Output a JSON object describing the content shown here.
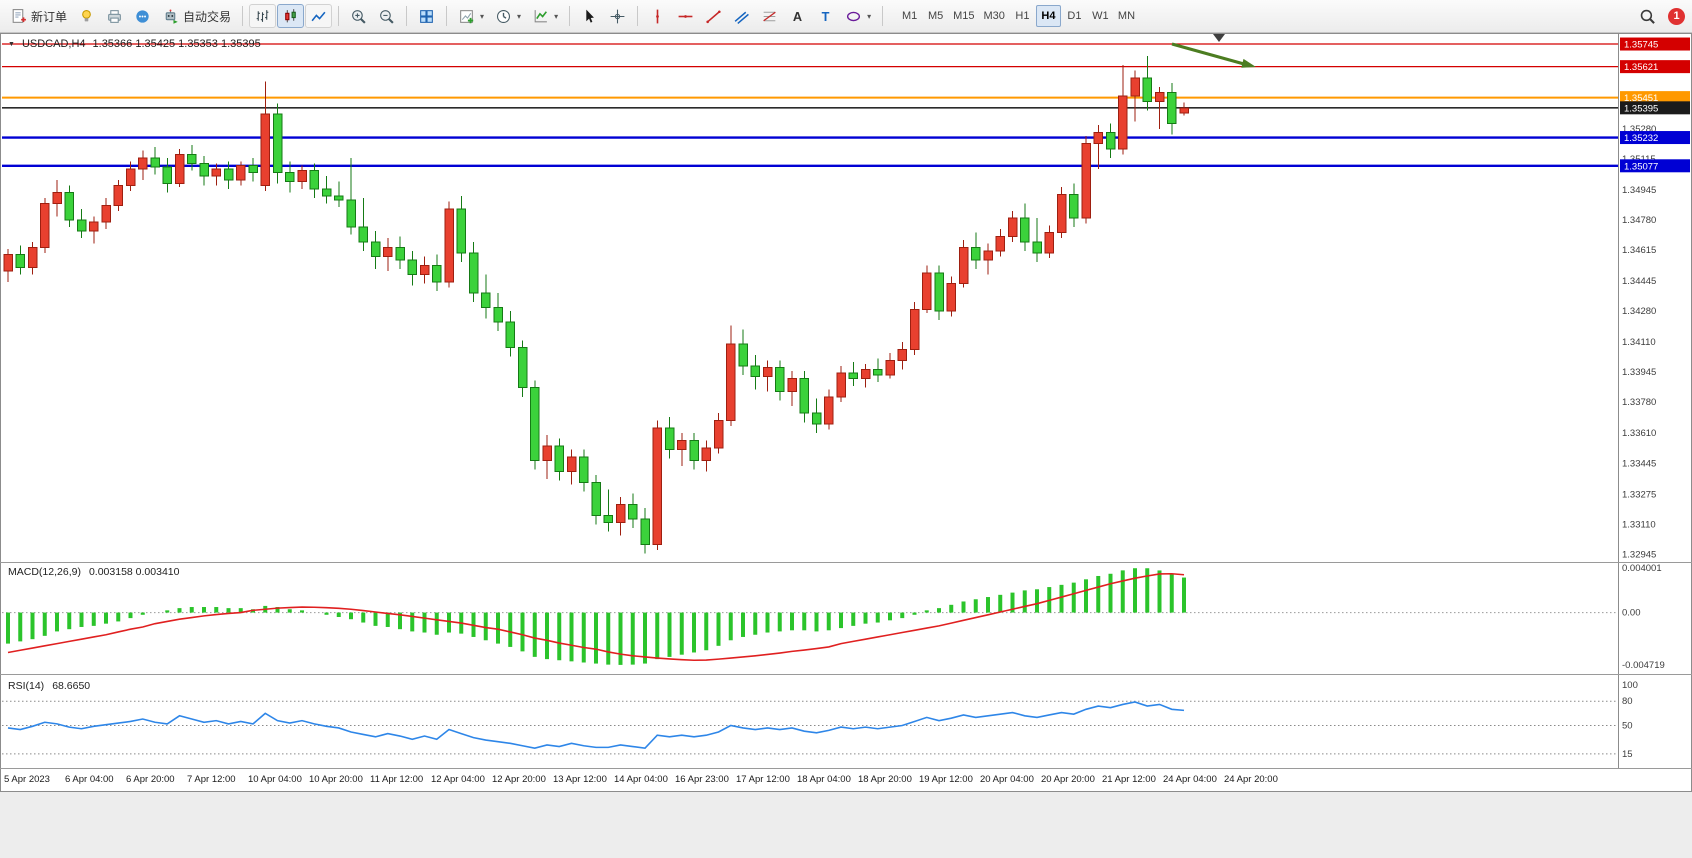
{
  "toolbar": {
    "new_order_label": "新订单",
    "algo_trading_label": "自动交易",
    "timeframes": [
      "M1",
      "M5",
      "M15",
      "M30",
      "H1",
      "H4",
      "D1",
      "W1",
      "MN"
    ],
    "active_timeframe": "H4",
    "notification_count": "1"
  },
  "chart": {
    "symbol_period": "USDCAD,H4",
    "ohlc": "1.35366 1.35425 1.35353 1.35395"
  },
  "chart_data": {
    "type": "candlestick",
    "symbol": "USDCAD",
    "period": "H4",
    "ylim": [
      1.3292,
      1.358
    ],
    "colors": {
      "bull": "#e8402f",
      "bull_border": "#9e1f10",
      "bear": "#3bd23b",
      "bear_border": "#157a15",
      "macd_histogram": "#2bc42b",
      "macd_signal": "#e02020",
      "rsi_line": "#2e86e8",
      "level_red": "#d40000",
      "level_orange": "#ff9900",
      "level_blue": "#0000d4",
      "bid_line": "#2b2b2b",
      "annotation_arrow": "#4c7d21"
    },
    "price_axis_labels": [
      1.3528,
      1.35115,
      1.34945,
      1.3478,
      1.34615,
      1.34445,
      1.3428,
      1.3411,
      1.33945,
      1.3378,
      1.3361,
      1.33445,
      1.33275,
      1.3311,
      1.32945
    ],
    "time_labels": [
      "5 Apr 2023",
      "6 Apr 04:00",
      "6 Apr 20:00",
      "7 Apr 12:00",
      "10 Apr 04:00",
      "10 Apr 20:00",
      "11 Apr 12:00",
      "12 Apr 04:00",
      "12 Apr 20:00",
      "13 Apr 12:00",
      "14 Apr 04:00",
      "16 Apr 23:00",
      "17 Apr 12:00",
      "18 Apr 04:00",
      "18 Apr 20:00",
      "19 Apr 12:00",
      "20 Apr 04:00",
      "20 Apr 20:00",
      "21 Apr 12:00",
      "24 Apr 04:00",
      "24 Apr 20:00"
    ],
    "levels": [
      {
        "price": 1.35745,
        "color": "#d40000",
        "width": 1.2
      },
      {
        "price": 1.35621,
        "color": "#d40000",
        "width": 1.2
      },
      {
        "price": 1.35451,
        "color": "#ff9900",
        "width": 2
      },
      {
        "price": 1.35232,
        "color": "#0000d4",
        "width": 2.4
      },
      {
        "price": 1.35077,
        "color": "#0000d4",
        "width": 2.4
      }
    ],
    "bid": {
      "price": 1.35395,
      "color": "#2b2b2b"
    },
    "candles": [
      [
        1.345,
        1.3462,
        1.3444,
        1.3459
      ],
      [
        1.3459,
        1.3464,
        1.3448,
        1.3452
      ],
      [
        1.3452,
        1.3466,
        1.3448,
        1.3463
      ],
      [
        1.3463,
        1.349,
        1.346,
        1.3487
      ],
      [
        1.3487,
        1.35,
        1.348,
        1.3493
      ],
      [
        1.3493,
        1.3497,
        1.3474,
        1.3478
      ],
      [
        1.3478,
        1.3484,
        1.3468,
        1.3472
      ],
      [
        1.3472,
        1.348,
        1.3465,
        1.3477
      ],
      [
        1.3477,
        1.349,
        1.3473,
        1.3486
      ],
      [
        1.3486,
        1.35,
        1.3483,
        1.3497
      ],
      [
        1.3497,
        1.351,
        1.3494,
        1.3506
      ],
      [
        1.3506,
        1.3516,
        1.35,
        1.3512
      ],
      [
        1.3512,
        1.3518,
        1.3503,
        1.3507
      ],
      [
        1.3507,
        1.3512,
        1.3493,
        1.3498
      ],
      [
        1.3498,
        1.3517,
        1.3496,
        1.3514
      ],
      [
        1.3514,
        1.3519,
        1.3505,
        1.3509
      ],
      [
        1.3509,
        1.3513,
        1.3497,
        1.3502
      ],
      [
        1.3502,
        1.3509,
        1.3497,
        1.3506
      ],
      [
        1.3506,
        1.351,
        1.3495,
        1.35
      ],
      [
        1.35,
        1.351,
        1.3497,
        1.3508
      ],
      [
        1.3508,
        1.3512,
        1.3499,
        1.3504
      ],
      [
        1.3497,
        1.3554,
        1.3494,
        1.3536
      ],
      [
        1.3536,
        1.3542,
        1.3498,
        1.3504
      ],
      [
        1.3504,
        1.351,
        1.3493,
        1.3499
      ],
      [
        1.3499,
        1.3508,
        1.3495,
        1.3505
      ],
      [
        1.3505,
        1.3509,
        1.349,
        1.3495
      ],
      [
        1.3495,
        1.3502,
        1.3487,
        1.3491
      ],
      [
        1.3491,
        1.3499,
        1.3485,
        1.3489
      ],
      [
        1.3489,
        1.3512,
        1.347,
        1.3474
      ],
      [
        1.3474,
        1.349,
        1.3461,
        1.3466
      ],
      [
        1.3466,
        1.3472,
        1.3451,
        1.3458
      ],
      [
        1.3458,
        1.3468,
        1.345,
        1.3463
      ],
      [
        1.3463,
        1.3469,
        1.3451,
        1.3456
      ],
      [
        1.3456,
        1.3461,
        1.3442,
        1.3448
      ],
      [
        1.3448,
        1.3458,
        1.3443,
        1.3453
      ],
      [
        1.3453,
        1.3459,
        1.3439,
        1.3444
      ],
      [
        1.3444,
        1.3488,
        1.3441,
        1.3484
      ],
      [
        1.3484,
        1.3491,
        1.3455,
        1.346
      ],
      [
        1.346,
        1.3466,
        1.3433,
        1.3438
      ],
      [
        1.3438,
        1.3448,
        1.3424,
        1.343
      ],
      [
        1.343,
        1.3438,
        1.3417,
        1.3422
      ],
      [
        1.3422,
        1.3428,
        1.3403,
        1.3408
      ],
      [
        1.3408,
        1.3412,
        1.3381,
        1.3386
      ],
      [
        1.3386,
        1.339,
        1.3341,
        1.3346
      ],
      [
        1.3346,
        1.336,
        1.3336,
        1.3354
      ],
      [
        1.3354,
        1.3358,
        1.3335,
        1.334
      ],
      [
        1.334,
        1.3352,
        1.3333,
        1.3348
      ],
      [
        1.3348,
        1.3352,
        1.3329,
        1.3334
      ],
      [
        1.3334,
        1.3338,
        1.3311,
        1.3316
      ],
      [
        1.3316,
        1.333,
        1.3307,
        1.3312
      ],
      [
        1.3312,
        1.3326,
        1.3305,
        1.3322
      ],
      [
        1.3322,
        1.3328,
        1.3309,
        1.3314
      ],
      [
        1.3314,
        1.332,
        1.3295,
        1.33
      ],
      [
        1.33,
        1.3368,
        1.3297,
        1.3364
      ],
      [
        1.3364,
        1.337,
        1.3347,
        1.3352
      ],
      [
        1.3352,
        1.3361,
        1.3343,
        1.3357
      ],
      [
        1.3357,
        1.3361,
        1.3341,
        1.3346
      ],
      [
        1.3346,
        1.3357,
        1.334,
        1.3353
      ],
      [
        1.3353,
        1.3372,
        1.335,
        1.3368
      ],
      [
        1.3368,
        1.342,
        1.3365,
        1.341
      ],
      [
        1.341,
        1.3418,
        1.3393,
        1.3398
      ],
      [
        1.3398,
        1.3404,
        1.3385,
        1.3392
      ],
      [
        1.3392,
        1.3401,
        1.3384,
        1.3397
      ],
      [
        1.3397,
        1.3401,
        1.3379,
        1.3384
      ],
      [
        1.3384,
        1.3395,
        1.3376,
        1.3391
      ],
      [
        1.3391,
        1.3395,
        1.3367,
        1.3372
      ],
      [
        1.3372,
        1.338,
        1.3361,
        1.3366
      ],
      [
        1.3366,
        1.3385,
        1.3363,
        1.3381
      ],
      [
        1.3381,
        1.3398,
        1.3378,
        1.3394
      ],
      [
        1.3394,
        1.34,
        1.3387,
        1.3391
      ],
      [
        1.3391,
        1.3399,
        1.3386,
        1.3396
      ],
      [
        1.3396,
        1.3402,
        1.3389,
        1.3393
      ],
      [
        1.3393,
        1.3405,
        1.3391,
        1.3401
      ],
      [
        1.3401,
        1.3411,
        1.3396,
        1.3407
      ],
      [
        1.3407,
        1.3433,
        1.3404,
        1.3429
      ],
      [
        1.3429,
        1.3453,
        1.3427,
        1.3449
      ],
      [
        1.3449,
        1.3453,
        1.3423,
        1.3428
      ],
      [
        1.3428,
        1.3447,
        1.3425,
        1.3443
      ],
      [
        1.3443,
        1.3467,
        1.3441,
        1.3463
      ],
      [
        1.3463,
        1.3471,
        1.3451,
        1.3456
      ],
      [
        1.3456,
        1.3465,
        1.3448,
        1.3461
      ],
      [
        1.3461,
        1.3473,
        1.3458,
        1.3469
      ],
      [
        1.3469,
        1.3483,
        1.3466,
        1.3479
      ],
      [
        1.3479,
        1.3487,
        1.3461,
        1.3466
      ],
      [
        1.3466,
        1.3479,
        1.3455,
        1.346
      ],
      [
        1.346,
        1.3475,
        1.3457,
        1.3471
      ],
      [
        1.3471,
        1.3496,
        1.3468,
        1.3492
      ],
      [
        1.3492,
        1.3498,
        1.3474,
        1.3479
      ],
      [
        1.3479,
        1.3524,
        1.3476,
        1.352
      ],
      [
        1.352,
        1.353,
        1.3506,
        1.3526
      ],
      [
        1.3526,
        1.3531,
        1.3512,
        1.3517
      ],
      [
        1.3517,
        1.3563,
        1.3514,
        1.3546
      ],
      [
        1.3546,
        1.356,
        1.3532,
        1.3556
      ],
      [
        1.3556,
        1.3568,
        1.3538,
        1.3543
      ],
      [
        1.3543,
        1.3551,
        1.3528,
        1.3548
      ],
      [
        1.3548,
        1.3553,
        1.3525,
        1.3531
      ],
      [
        1.35366,
        1.35425,
        1.35353,
        1.35395
      ]
    ],
    "macd": {
      "name": "MACD(12,26,9)",
      "values_text": "0.003158 0.003410",
      "axis_labels": [
        "0.004001",
        "0.00",
        "-0.004719"
      ],
      "ylim": [
        -0.005,
        0.0042
      ],
      "histogram": [
        -0.0028,
        -0.0026,
        -0.0024,
        -0.0021,
        -0.0017,
        -0.0015,
        -0.0013,
        -0.0012,
        -0.001,
        -0.0008,
        -0.0005,
        -0.0002,
        0.0,
        0.0002,
        0.0004,
        0.0005,
        0.0005,
        0.0005,
        0.0004,
        0.0004,
        0.0003,
        0.0006,
        0.0005,
        0.0003,
        0.0002,
        0.0,
        -0.0002,
        -0.0004,
        -0.0006,
        -0.0009,
        -0.0012,
        -0.0013,
        -0.0015,
        -0.0017,
        -0.0018,
        -0.002,
        -0.0018,
        -0.0019,
        -0.0022,
        -0.0025,
        -0.0028,
        -0.0031,
        -0.0035,
        -0.004,
        -0.0042,
        -0.0043,
        -0.0044,
        -0.0045,
        -0.0046,
        -0.0047,
        -0.00472,
        -0.0047,
        -0.0046,
        -0.0042,
        -0.004,
        -0.0038,
        -0.0036,
        -0.0034,
        -0.003,
        -0.0025,
        -0.0022,
        -0.002,
        -0.0018,
        -0.0017,
        -0.0016,
        -0.0016,
        -0.0017,
        -0.0016,
        -0.0014,
        -0.0012,
        -0.001,
        -0.0009,
        -0.0007,
        -0.0005,
        -0.0002,
        0.0002,
        0.0004,
        0.0007,
        0.001,
        0.0012,
        0.0014,
        0.0016,
        0.0018,
        0.002,
        0.0021,
        0.0023,
        0.0025,
        0.0027,
        0.003,
        0.0033,
        0.0035,
        0.0038,
        0.004,
        0.004001,
        0.0038,
        0.0035,
        0.003158
      ],
      "signal": [
        -0.0036,
        -0.0034,
        -0.0032,
        -0.003,
        -0.0028,
        -0.0026,
        -0.0024,
        -0.0022,
        -0.002,
        -0.00175,
        -0.0015,
        -0.0013,
        -0.001,
        -0.0008,
        -0.0006,
        -0.00045,
        -0.0003,
        -0.00018,
        -8e-05,
        0.0,
        0.0002,
        0.0003,
        0.0004,
        0.00045,
        0.0005,
        0.00048,
        0.00044,
        0.00038,
        0.0003,
        0.00018,
        5e-05,
        -8e-05,
        -0.0002,
        -0.00035,
        -0.0005,
        -0.00065,
        -0.0008,
        -0.00095,
        -0.00115,
        -0.00135,
        -0.0015,
        -0.00175,
        -0.002,
        -0.0023,
        -0.0025,
        -0.00275,
        -0.00295,
        -0.00315,
        -0.0033,
        -0.00355,
        -0.00375,
        -0.0039,
        -0.004,
        -0.0041,
        -0.00418,
        -0.00425,
        -0.0043,
        -0.00428,
        -0.0042,
        -0.0041,
        -0.004,
        -0.0039,
        -0.00378,
        -0.00365,
        -0.0035,
        -0.00338,
        -0.00325,
        -0.0031,
        -0.0028,
        -0.0026,
        -0.0024,
        -0.0022,
        -0.002,
        -0.0018,
        -0.0016,
        -0.0014,
        -0.0012,
        -0.00095,
        -0.0007,
        -0.00045,
        -0.0002,
        5e-05,
        0.0003,
        0.00055,
        0.0008,
        0.0011,
        0.0014,
        0.0017,
        0.002,
        0.0023,
        0.0026,
        0.00285,
        0.0031,
        0.0033,
        0.00348,
        0.0035,
        0.00341
      ]
    },
    "rsi": {
      "name": "RSI(14)",
      "value_text": "68.6650",
      "axis_labels": [
        "100",
        "80",
        "50",
        "15"
      ],
      "levels": [
        80,
        50,
        15
      ],
      "values": [
        47,
        45,
        49,
        54,
        52,
        48,
        46,
        49,
        51,
        53,
        55,
        58,
        54,
        52,
        62,
        58,
        54,
        56,
        52,
        55,
        52,
        65,
        56,
        53,
        56,
        52,
        49,
        47,
        42,
        39,
        36,
        40,
        37,
        33,
        37,
        33,
        45,
        40,
        35,
        32,
        30,
        28,
        25,
        22,
        26,
        24,
        28,
        25,
        23,
        23,
        26,
        24,
        22,
        38,
        36,
        38,
        36,
        38,
        42,
        50,
        47,
        45,
        47,
        45,
        47,
        43,
        41,
        44,
        48,
        46,
        48,
        46,
        48,
        50,
        55,
        60,
        56,
        59,
        63,
        60,
        62,
        64,
        66,
        62,
        60,
        63,
        66,
        64,
        70,
        74,
        72,
        76,
        79,
        74,
        76,
        70,
        68.67
      ]
    }
  }
}
